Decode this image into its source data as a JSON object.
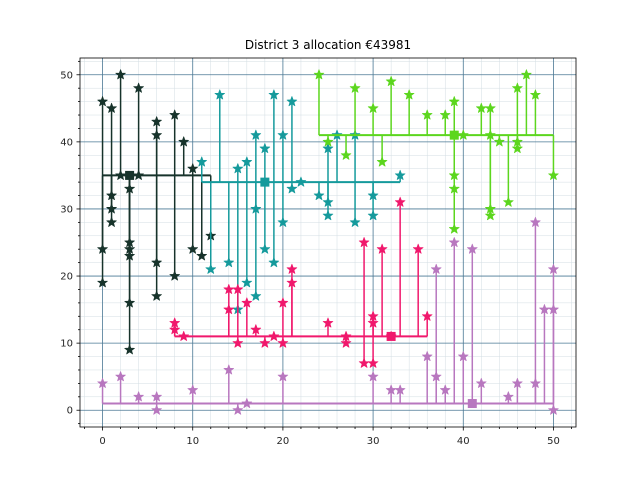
{
  "chart_data": {
    "type": "scatter",
    "title": "District 3 allocation €43981",
    "xlabel": "",
    "ylabel": "",
    "xlim": [
      -2.5,
      52.5
    ],
    "ylim": [
      -2.5,
      52.5
    ],
    "x_ticks": [
      0,
      10,
      20,
      30,
      40,
      50
    ],
    "y_ticks": [
      0,
      10,
      20,
      30,
      40,
      50
    ],
    "grid": "major and minor",
    "marker": "star",
    "series": [
      {
        "color": "#17332b",
        "trunk_y": 35,
        "trunk_x": [
          0,
          12
        ],
        "hub": [
          3,
          35
        ],
        "points": [
          [
            0,
            46
          ],
          [
            0,
            24
          ],
          [
            0,
            19
          ],
          [
            1,
            45
          ],
          [
            1,
            32
          ],
          [
            1,
            30
          ],
          [
            1,
            28
          ],
          [
            2,
            50
          ],
          [
            2,
            35
          ],
          [
            3,
            33
          ],
          [
            3,
            25
          ],
          [
            3,
            24
          ],
          [
            3,
            23
          ],
          [
            3,
            16
          ],
          [
            3,
            9
          ],
          [
            4,
            48
          ],
          [
            4,
            35
          ],
          [
            6,
            43
          ],
          [
            6,
            41
          ],
          [
            6,
            22
          ],
          [
            6,
            17
          ],
          [
            8,
            44
          ],
          [
            8,
            20
          ],
          [
            9,
            40
          ],
          [
            10,
            36
          ],
          [
            10,
            24
          ],
          [
            11,
            23
          ],
          [
            12,
            26
          ]
        ]
      },
      {
        "color": "#159a9c",
        "trunk_y": 34,
        "trunk_x": [
          11,
          33
        ],
        "hub": [
          18,
          34
        ],
        "points": [
          [
            11,
            37
          ],
          [
            12,
            21
          ],
          [
            13,
            47
          ],
          [
            14,
            22
          ],
          [
            15,
            36
          ],
          [
            15,
            15
          ],
          [
            16,
            37
          ],
          [
            16,
            19
          ],
          [
            17,
            41
          ],
          [
            17,
            30
          ],
          [
            17,
            17
          ],
          [
            18,
            39
          ],
          [
            18,
            24
          ],
          [
            19,
            47
          ],
          [
            19,
            22
          ],
          [
            20,
            41
          ],
          [
            20,
            28
          ],
          [
            21,
            46
          ],
          [
            21,
            33
          ],
          [
            22,
            34
          ],
          [
            24,
            32
          ],
          [
            25,
            39
          ],
          [
            25,
            31
          ],
          [
            25,
            29
          ],
          [
            26,
            41
          ],
          [
            28,
            41
          ],
          [
            28,
            28
          ],
          [
            30,
            32
          ],
          [
            30,
            29
          ],
          [
            33,
            35
          ]
        ]
      },
      {
        "color": "#5cd61e",
        "trunk_y": 41,
        "trunk_x": [
          24,
          50
        ],
        "hub": [
          39,
          41
        ],
        "points": [
          [
            24,
            50
          ],
          [
            25,
            40
          ],
          [
            27,
            38
          ],
          [
            28,
            48
          ],
          [
            30,
            45
          ],
          [
            31,
            37
          ],
          [
            32,
            49
          ],
          [
            34,
            47
          ],
          [
            36,
            44
          ],
          [
            38,
            44
          ],
          [
            39,
            46
          ],
          [
            39,
            35
          ],
          [
            39,
            33
          ],
          [
            39,
            27
          ],
          [
            40,
            41
          ],
          [
            42,
            45
          ],
          [
            43,
            45
          ],
          [
            43,
            41
          ],
          [
            43,
            30
          ],
          [
            43,
            29
          ],
          [
            44,
            40
          ],
          [
            45,
            31
          ],
          [
            46,
            48
          ],
          [
            46,
            40
          ],
          [
            46,
            39
          ],
          [
            47,
            50
          ],
          [
            48,
            47
          ],
          [
            50,
            35
          ]
        ]
      },
      {
        "color": "#f0186c",
        "trunk_y": 11,
        "trunk_x": [
          8,
          36
        ],
        "hub": [
          32,
          11
        ],
        "points": [
          [
            8,
            13
          ],
          [
            8,
            12
          ],
          [
            9,
            11
          ],
          [
            14,
            18
          ],
          [
            14,
            15
          ],
          [
            15,
            10
          ],
          [
            15,
            18
          ],
          [
            16,
            16
          ],
          [
            17,
            12
          ],
          [
            18,
            10
          ],
          [
            19,
            11
          ],
          [
            20,
            16
          ],
          [
            20,
            10
          ],
          [
            21,
            21
          ],
          [
            21,
            19
          ],
          [
            25,
            13
          ],
          [
            27,
            11
          ],
          [
            27,
            10
          ],
          [
            29,
            25
          ],
          [
            29,
            7
          ],
          [
            30,
            14
          ],
          [
            30,
            13
          ],
          [
            30,
            7
          ],
          [
            31,
            24
          ],
          [
            32,
            11
          ],
          [
            33,
            31
          ],
          [
            35,
            24
          ],
          [
            36,
            14
          ]
        ]
      },
      {
        "color": "#b877bf",
        "trunk_y": 1,
        "trunk_x": [
          0,
          50
        ],
        "hub": [
          41,
          1
        ],
        "points": [
          [
            0,
            4
          ],
          [
            2,
            5
          ],
          [
            4,
            2
          ],
          [
            6,
            2
          ],
          [
            6,
            0
          ],
          [
            10,
            3
          ],
          [
            14,
            6
          ],
          [
            15,
            0
          ],
          [
            16,
            1
          ],
          [
            20,
            5
          ],
          [
            30,
            5
          ],
          [
            32,
            3
          ],
          [
            33,
            3
          ],
          [
            36,
            8
          ],
          [
            37,
            21
          ],
          [
            37,
            5
          ],
          [
            38,
            3
          ],
          [
            39,
            25
          ],
          [
            40,
            8
          ],
          [
            41,
            24
          ],
          [
            42,
            4
          ],
          [
            45,
            2
          ],
          [
            46,
            4
          ],
          [
            48,
            28
          ],
          [
            48,
            4
          ],
          [
            49,
            15
          ],
          [
            50,
            21
          ],
          [
            50,
            15
          ],
          [
            50,
            0
          ]
        ]
      }
    ]
  }
}
